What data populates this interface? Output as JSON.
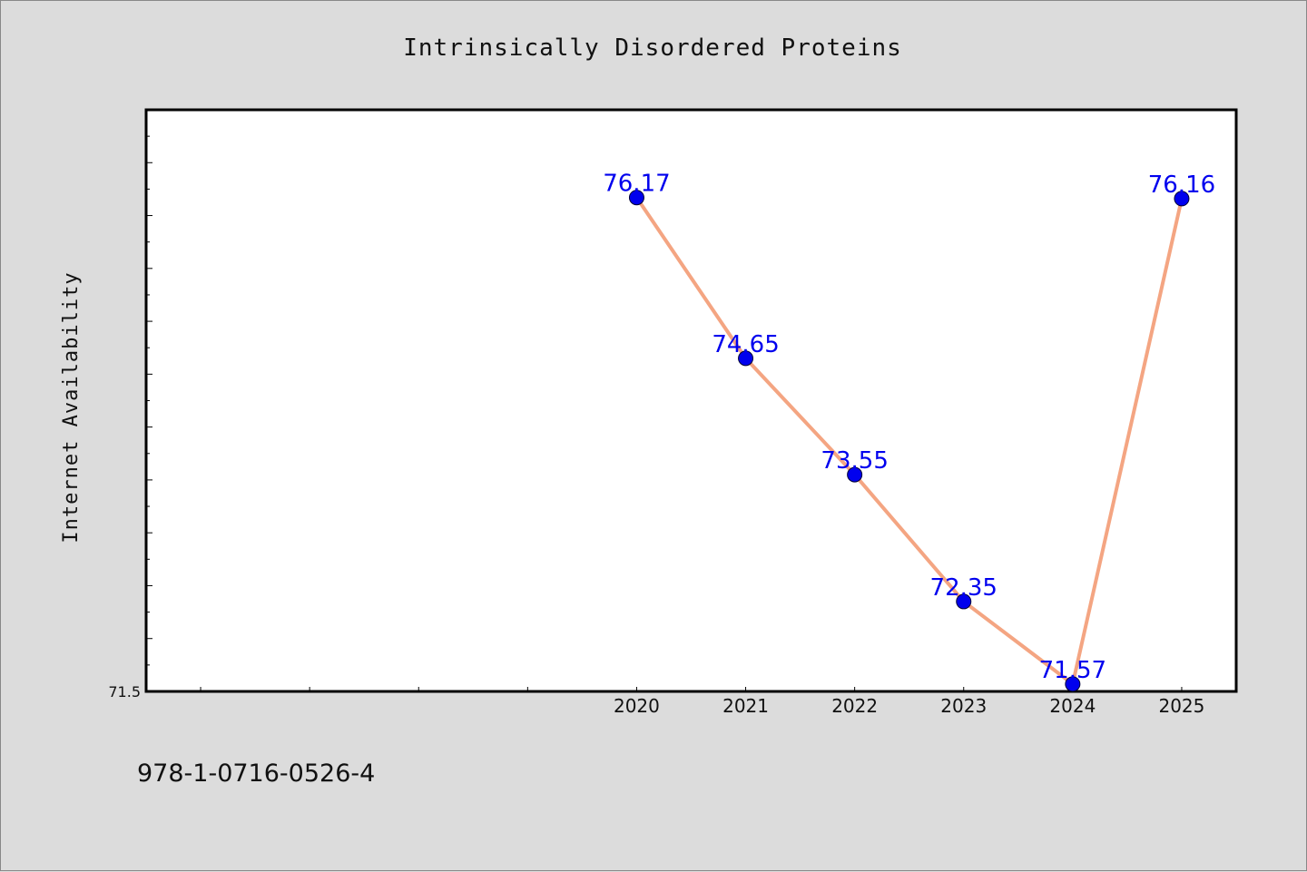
{
  "chart_data": {
    "type": "line",
    "title": "Intrinsically Disordered Proteins",
    "xlabel": "",
    "ylabel": "Internet Availability",
    "x": [
      2020,
      2021,
      2022,
      2023,
      2024,
      2025
    ],
    "x_tick_labels": [
      "2020",
      "2021",
      "2022",
      "2023",
      "2024",
      "2025"
    ],
    "xlim": [
      2015.5,
      2025.5
    ],
    "series": [
      {
        "values": [
          76.17,
          74.65,
          73.55,
          72.35,
          71.57,
          76.16
        ],
        "data_labels": [
          "76.17",
          "74.65",
          "73.55",
          "72.35",
          "71.57",
          "76.16"
        ]
      }
    ],
    "ylim": [
      71.5,
      77.0
    ],
    "y_tick_labels": [
      "71.5"
    ],
    "grid": false,
    "legend": "none",
    "colors": {
      "line": "#f4a582",
      "marker": "#0000ee",
      "label": "#0000ee",
      "background": "#dcdcdc",
      "plot_background": "#ffffff"
    }
  },
  "footnote": "978-1-0716-0526-4"
}
